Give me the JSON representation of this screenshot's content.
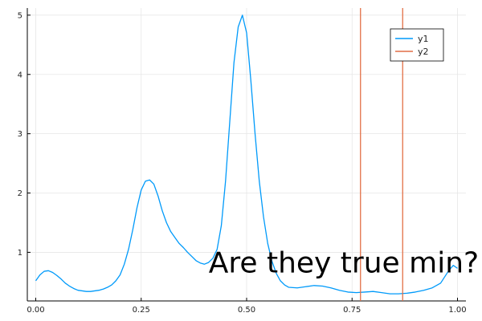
{
  "chart_data": {
    "type": "line",
    "title": "",
    "xlabel": "",
    "ylabel": "",
    "xlim": [
      -0.02,
      1.02
    ],
    "ylim": [
      0.18,
      5.12
    ],
    "xticks": [
      0.0,
      0.25,
      0.5,
      0.75,
      1.0
    ],
    "xtick_labels": [
      "0.00",
      "0.25",
      "0.50",
      "0.75",
      "1.00"
    ],
    "yticks": [
      1,
      2,
      3,
      4,
      5
    ],
    "ytick_labels": [
      "1",
      "2",
      "3",
      "4",
      "5"
    ],
    "grid": true,
    "legend_position": "top-right",
    "series": [
      {
        "name": "y1",
        "kind": "line",
        "color": "#009AFA",
        "x": [
          0.0,
          0.01,
          0.02,
          0.03,
          0.04,
          0.05,
          0.06,
          0.07,
          0.08,
          0.09,
          0.1,
          0.11,
          0.12,
          0.13,
          0.14,
          0.15,
          0.16,
          0.17,
          0.18,
          0.19,
          0.2,
          0.21,
          0.22,
          0.23,
          0.24,
          0.25,
          0.26,
          0.27,
          0.28,
          0.29,
          0.3,
          0.31,
          0.32,
          0.33,
          0.34,
          0.35,
          0.36,
          0.37,
          0.38,
          0.39,
          0.4,
          0.41,
          0.42,
          0.43,
          0.44,
          0.45,
          0.46,
          0.47,
          0.48,
          0.49,
          0.5,
          0.51,
          0.52,
          0.53,
          0.54,
          0.55,
          0.56,
          0.57,
          0.58,
          0.59,
          0.6,
          0.62,
          0.64,
          0.66,
          0.68,
          0.7,
          0.72,
          0.74,
          0.76,
          0.78,
          0.8,
          0.82,
          0.84,
          0.86,
          0.88,
          0.9,
          0.92,
          0.94,
          0.96,
          0.98,
          0.99,
          1.0
        ],
        "y": [
          0.52,
          0.62,
          0.68,
          0.69,
          0.66,
          0.61,
          0.55,
          0.48,
          0.43,
          0.39,
          0.36,
          0.35,
          0.34,
          0.34,
          0.35,
          0.36,
          0.38,
          0.41,
          0.45,
          0.52,
          0.62,
          0.8,
          1.05,
          1.38,
          1.75,
          2.05,
          2.2,
          2.22,
          2.15,
          1.95,
          1.7,
          1.5,
          1.35,
          1.25,
          1.15,
          1.08,
          1.0,
          0.93,
          0.86,
          0.82,
          0.8,
          0.83,
          0.9,
          1.05,
          1.45,
          2.2,
          3.2,
          4.2,
          4.8,
          5.0,
          4.7,
          3.9,
          3.0,
          2.2,
          1.6,
          1.15,
          0.85,
          0.65,
          0.52,
          0.45,
          0.41,
          0.4,
          0.42,
          0.44,
          0.43,
          0.4,
          0.36,
          0.33,
          0.32,
          0.33,
          0.34,
          0.32,
          0.3,
          0.3,
          0.31,
          0.33,
          0.36,
          0.4,
          0.48,
          0.7,
          0.78,
          0.73
        ]
      },
      {
        "name": "y2",
        "kind": "vline",
        "color": "#E26F46",
        "x": [
          0.77,
          0.87
        ]
      }
    ],
    "annotations": [
      {
        "text": "Are they true min?",
        "x": 0.41,
        "y": 0.82
      }
    ]
  }
}
